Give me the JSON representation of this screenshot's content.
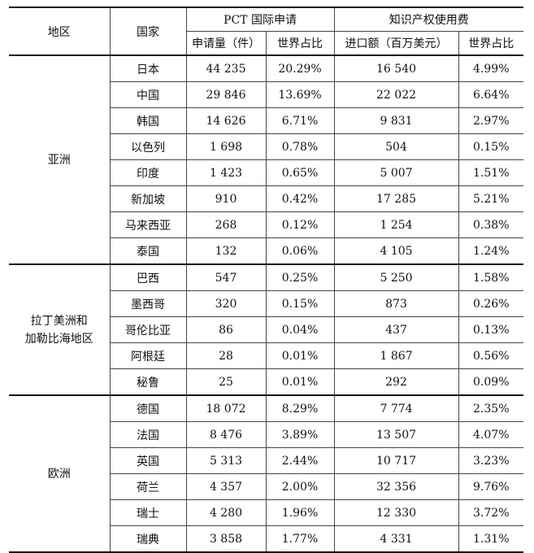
{
  "header": {
    "region": "地区",
    "country": "国家",
    "pct_group": "PCT 国际申请",
    "ip_group": "知识产权使用费",
    "pct_count": "申请量（件）",
    "pct_share": "世界占比",
    "ip_import": "进口额（百万美元）",
    "ip_share": "世界占比"
  },
  "groups": [
    {
      "region_lines": [
        "亚洲"
      ],
      "rows": [
        {
          "country": "日本",
          "pct_count": "44 235",
          "pct_share": "20.29%",
          "ip_import": "16 540",
          "ip_share": "4.99%"
        },
        {
          "country": "中国",
          "pct_count": "29 846",
          "pct_share": "13.69%",
          "ip_import": "22 022",
          "ip_share": "6.64%"
        },
        {
          "country": "韩国",
          "pct_count": "14 626",
          "pct_share": "6.71%",
          "ip_import": "9 831",
          "ip_share": "2.97%"
        },
        {
          "country": "以色列",
          "pct_count": "1 698",
          "pct_share": "0.78%",
          "ip_import": "504",
          "ip_share": "0.15%"
        },
        {
          "country": "印度",
          "pct_count": "1 423",
          "pct_share": "0.65%",
          "ip_import": "5 007",
          "ip_share": "1.51%"
        },
        {
          "country": "新加坡",
          "pct_count": "910",
          "pct_share": "0.42%",
          "ip_import": "17 285",
          "ip_share": "5.21%"
        },
        {
          "country": "马来西亚",
          "pct_count": "268",
          "pct_share": "0.12%",
          "ip_import": "1 254",
          "ip_share": "0.38%"
        },
        {
          "country": "泰国",
          "pct_count": "132",
          "pct_share": "0.06%",
          "ip_import": "4 105",
          "ip_share": "1.24%"
        }
      ]
    },
    {
      "region_lines": [
        "拉丁美洲和",
        "加勒比海地区"
      ],
      "rows": [
        {
          "country": "巴西",
          "pct_count": "547",
          "pct_share": "0.25%",
          "ip_import": "5 250",
          "ip_share": "1.58%"
        },
        {
          "country": "墨西哥",
          "pct_count": "320",
          "pct_share": "0.15%",
          "ip_import": "873",
          "ip_share": "0.26%"
        },
        {
          "country": "哥伦比亚",
          "pct_count": "86",
          "pct_share": "0.04%",
          "ip_import": "437",
          "ip_share": "0.13%"
        },
        {
          "country": "阿根廷",
          "pct_count": "28",
          "pct_share": "0.01%",
          "ip_import": "1 867",
          "ip_share": "0.56%"
        },
        {
          "country": "秘鲁",
          "pct_count": "25",
          "pct_share": "0.01%",
          "ip_import": "292",
          "ip_share": "0.09%"
        }
      ]
    },
    {
      "region_lines": [
        "欧洲"
      ],
      "rows": [
        {
          "country": "德国",
          "pct_count": "18 072",
          "pct_share": "8.29%",
          "ip_import": "7 774",
          "ip_share": "2.35%"
        },
        {
          "country": "法国",
          "pct_count": "8 476",
          "pct_share": "3.89%",
          "ip_import": "13 507",
          "ip_share": "4.07%"
        },
        {
          "country": "英国",
          "pct_count": "5 313",
          "pct_share": "2.44%",
          "ip_import": "10 717",
          "ip_share": "3.23%"
        },
        {
          "country": "荷兰",
          "pct_count": "4 357",
          "pct_share": "2.00%",
          "ip_import": "32 356",
          "ip_share": "9.76%"
        },
        {
          "country": "瑞士",
          "pct_count": "4 280",
          "pct_share": "1.96%",
          "ip_import": "12 330",
          "ip_share": "3.72%"
        },
        {
          "country": "瑞典",
          "pct_count": "3 858",
          "pct_share": "1.77%",
          "ip_import": "4 331",
          "ip_share": "1.31%"
        }
      ]
    }
  ]
}
